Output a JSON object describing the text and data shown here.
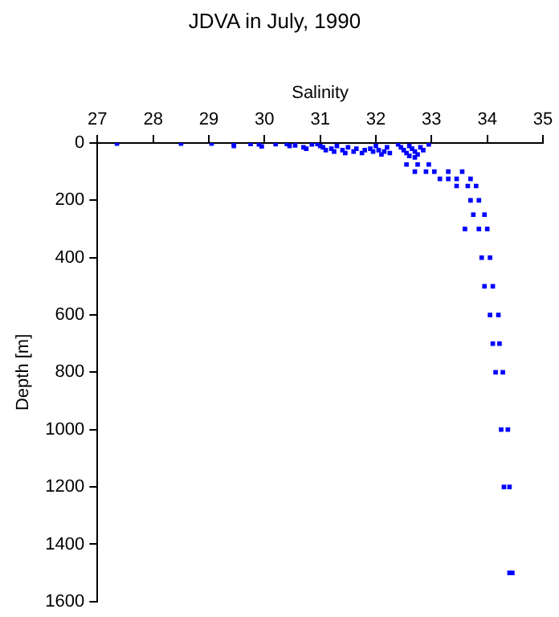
{
  "chart_data": {
    "type": "scatter",
    "title": "JDVA in July, 1990",
    "xlabel": "Salinity",
    "ylabel": "Depth [m]",
    "xlim": [
      27,
      35
    ],
    "xticks": [
      27,
      28,
      29,
      30,
      31,
      32,
      33,
      34,
      35
    ],
    "ylim": [
      1600,
      0
    ],
    "yticks": [
      0,
      200,
      400,
      600,
      800,
      1000,
      1200,
      1400,
      1600
    ],
    "grid": false,
    "legend": false,
    "marker": "square",
    "series": [
      {
        "color": "#0000ff",
        "x": [
          27.35,
          28.5,
          29.05,
          29.45,
          29.45,
          29.75,
          29.9,
          29.95,
          30.2,
          30.4,
          30.45,
          30.55,
          30.7,
          30.75,
          30.85,
          30.95,
          31.0,
          31.05,
          31.1,
          31.2,
          31.25,
          31.3,
          31.4,
          31.45,
          31.5,
          31.6,
          31.65,
          31.75,
          31.8,
          31.9,
          31.95,
          32.0,
          32.05,
          32.15,
          32.1,
          32.2,
          32.25,
          32.4,
          32.45,
          32.5,
          32.55,
          32.6,
          32.65,
          32.7,
          32.75,
          32.8,
          32.85,
          32.95,
          32.6,
          32.7,
          32.55,
          32.75,
          32.95,
          32.7,
          32.9,
          33.05,
          33.3,
          33.55,
          33.15,
          33.3,
          33.45,
          33.7,
          33.45,
          33.65,
          33.8,
          33.7,
          33.85,
          33.75,
          33.95,
          33.6,
          33.85,
          34.0,
          33.9,
          34.05,
          33.95,
          34.1,
          34.05,
          34.2,
          34.1,
          34.22,
          34.15,
          34.28,
          34.25,
          34.37,
          34.3,
          34.4,
          34.4,
          34.45
        ],
        "values": [
          2,
          2,
          2,
          3,
          10,
          3,
          5,
          12,
          4,
          3,
          10,
          8,
          15,
          20,
          5,
          3,
          10,
          15,
          25,
          20,
          30,
          10,
          25,
          35,
          15,
          30,
          20,
          35,
          25,
          20,
          30,
          10,
          25,
          30,
          40,
          15,
          35,
          5,
          15,
          25,
          35,
          10,
          20,
          30,
          40,
          15,
          25,
          5,
          45,
          50,
          75,
          75,
          75,
          100,
          100,
          100,
          100,
          100,
          125,
          125,
          125,
          125,
          150,
          150,
          150,
          200,
          200,
          250,
          250,
          300,
          300,
          300,
          400,
          400,
          500,
          500,
          600,
          600,
          700,
          700,
          800,
          800,
          1000,
          1000,
          1200,
          1200,
          1500,
          1500
        ]
      }
    ]
  }
}
